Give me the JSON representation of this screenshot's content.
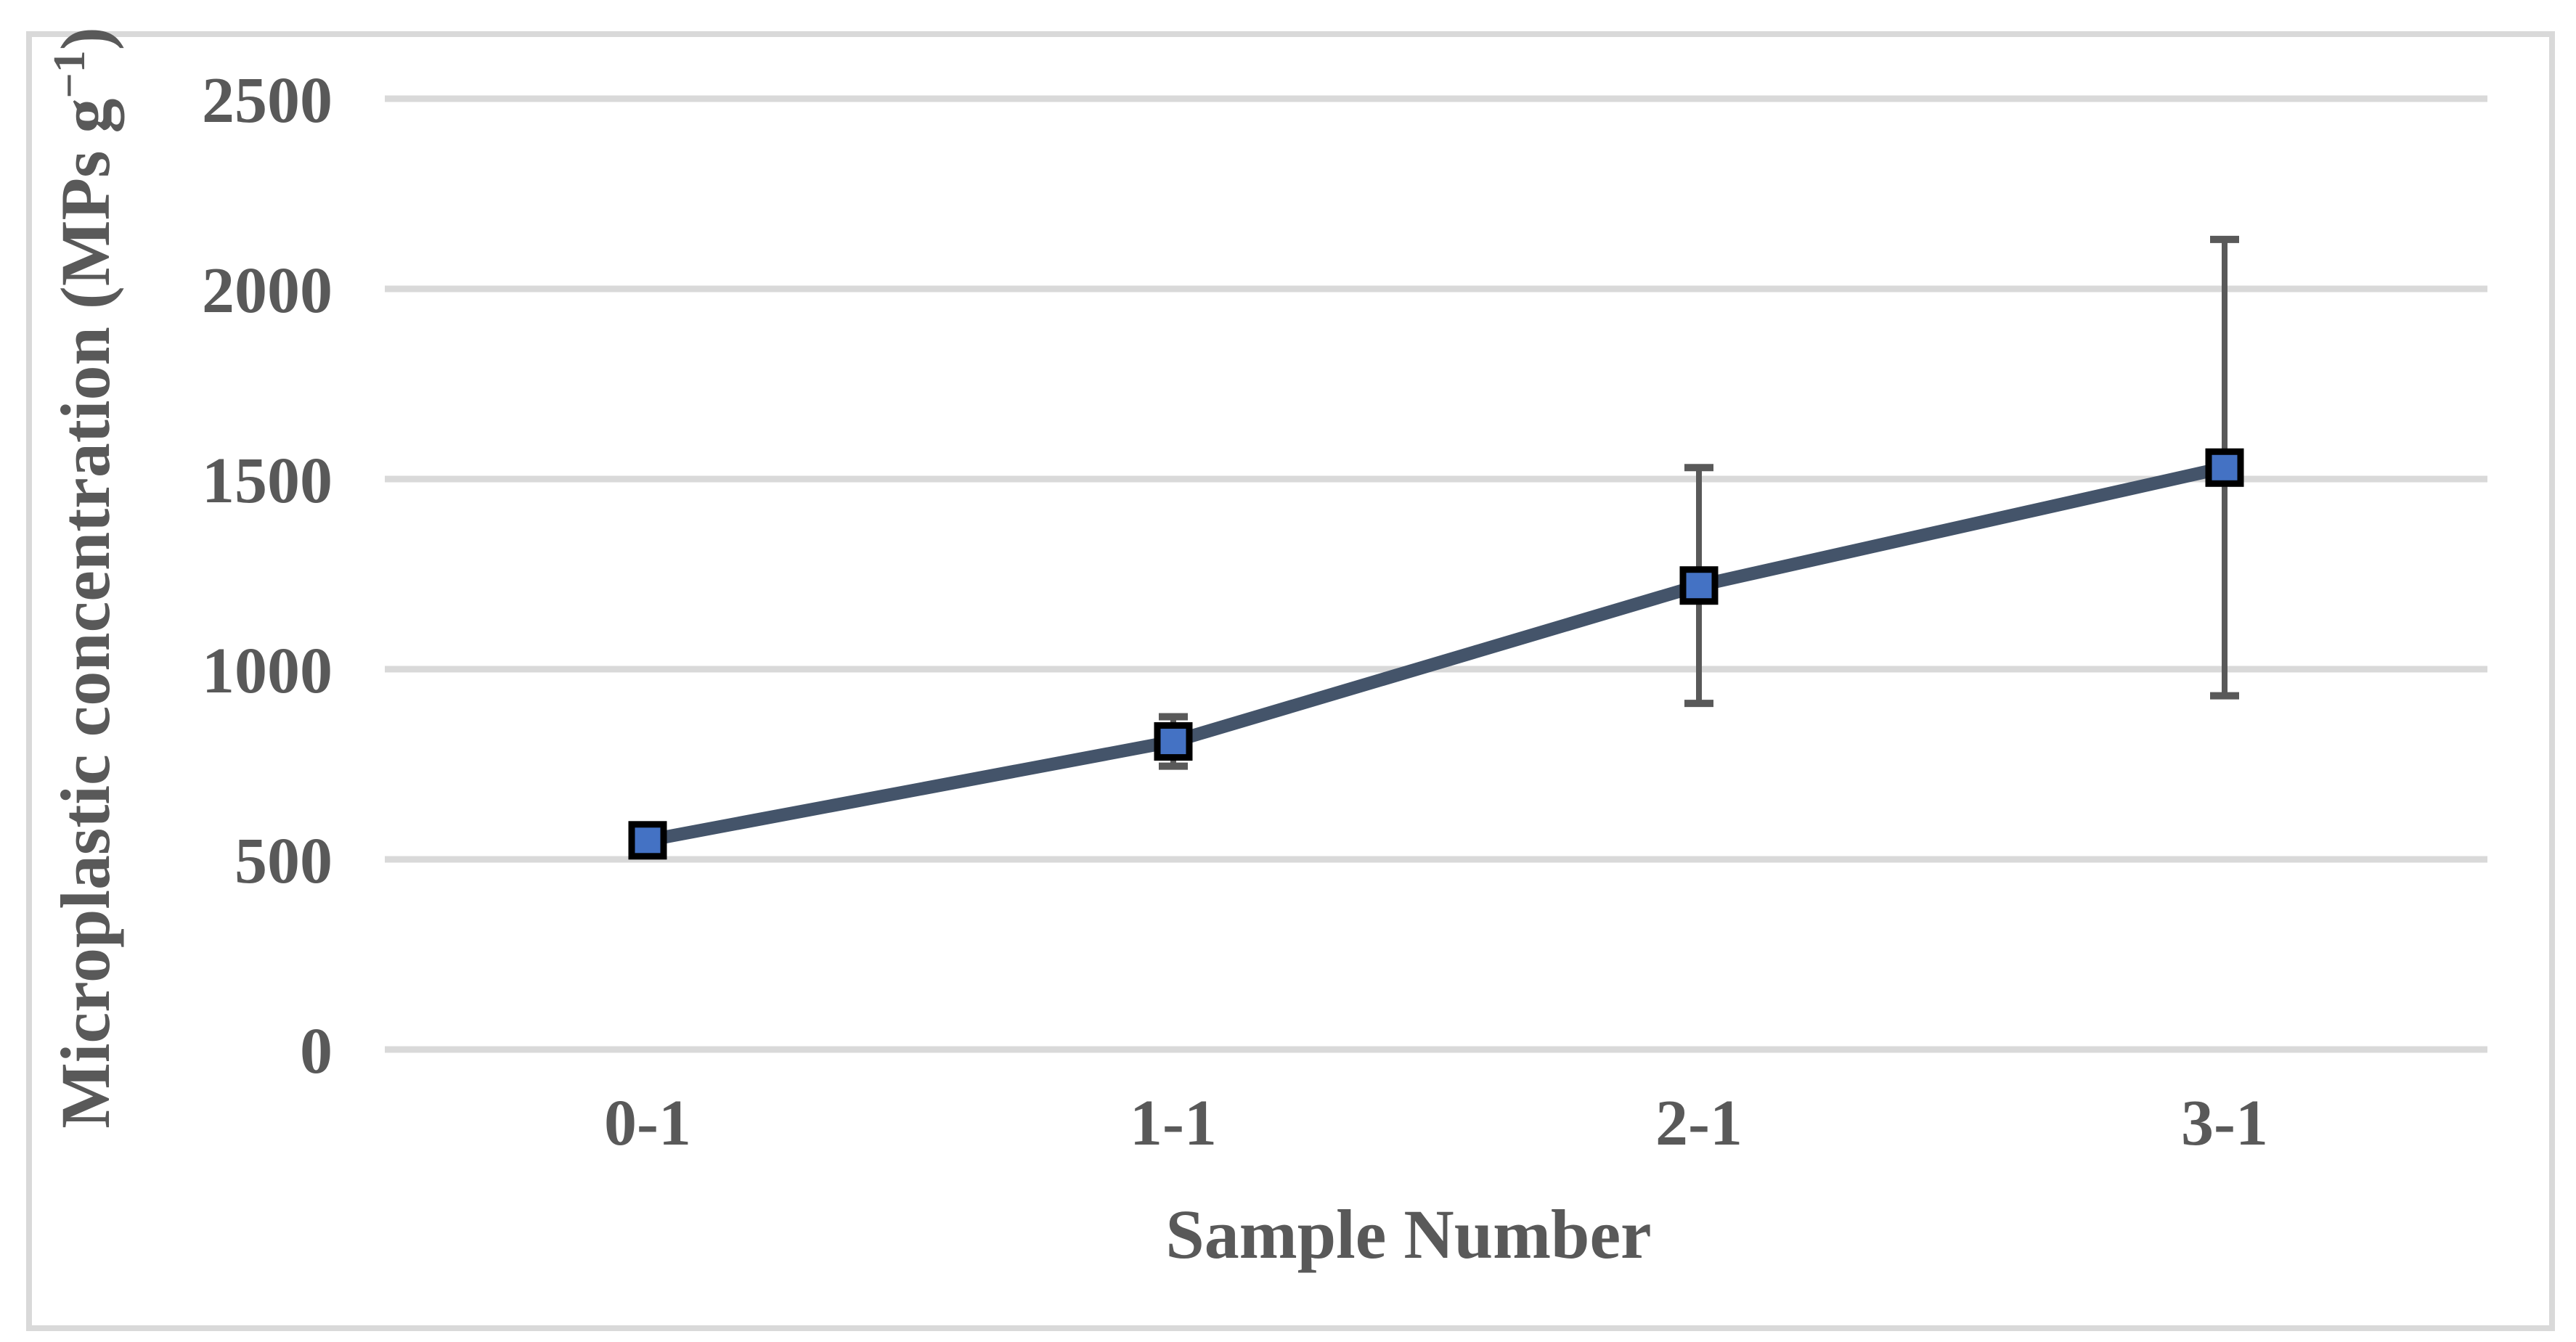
{
  "figure": {
    "background": "#FFFFFF",
    "frame_color": "#D9D9D9",
    "description": "Line chart with square markers and vertical error bars inside a light gray frame"
  },
  "chart_data": {
    "type": "line",
    "title": "",
    "xlabel": "Sample Number",
    "ylabel": "Microplastic concentration (MPs g−1)",
    "ylabel_parts": {
      "prefix": "Microplastic concentration (MPs g",
      "superscript": "−1",
      "suffix": ")"
    },
    "categories": [
      "0-1",
      "1-1",
      "2-1",
      "3-1"
    ],
    "series": [
      {
        "name": "Microplastic concentration",
        "values": [
          550,
          810,
          1220,
          1530
        ],
        "error_plus": [
          0,
          65,
          310,
          600
        ],
        "error_minus": [
          0,
          65,
          310,
          600
        ],
        "line_color": "#44546A",
        "marker": "square",
        "marker_fill": "#4472C4",
        "marker_border": "#000000"
      }
    ],
    "y_ticks": [
      0,
      500,
      1000,
      1500,
      2000,
      2500
    ],
    "ylim": [
      0,
      2500
    ],
    "xlim_categories": 4,
    "grid": true,
    "gridline_color": "#D9D9D9",
    "error_bar_color": "#595959",
    "text_color": "#595959",
    "legend": "none"
  }
}
